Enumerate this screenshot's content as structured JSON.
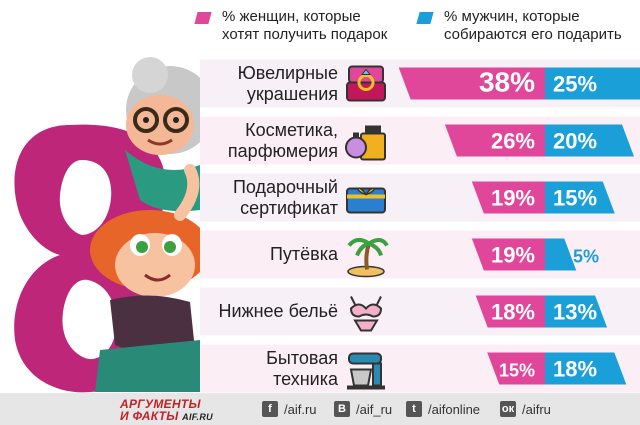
{
  "legend": {
    "women": "% женщин, которые хотят получить подарок",
    "women_line1": "% женщин, которые",
    "women_line2": "хотят получить подарок",
    "men_line1": "% мужчин, которые",
    "men_line2": "собираются его подарить",
    "women_color": "#e0479a",
    "men_color": "#1b9fd9"
  },
  "chart_data": {
    "type": "bar",
    "categories": [
      "Ювелирные украшения",
      "Косметика, парфюмерия",
      "Подарочный сертификат",
      "Путёвка",
      "Нижнее бельё",
      "Бытовая техника"
    ],
    "category_lines": [
      [
        "Ювелирные",
        "украшения"
      ],
      [
        "Косметика,",
        "парфюмерия"
      ],
      [
        "Подарочный",
        "сертификат"
      ],
      [
        "Путёвка"
      ],
      [
        "Нижнее бельё"
      ],
      [
        "Бытовая",
        "техника"
      ]
    ],
    "series": [
      {
        "name": "% женщин, которые хотят получить подарок",
        "values": [
          38,
          26,
          19,
          19,
          18,
          15
        ],
        "labels": [
          "38%",
          "26%",
          "19%",
          "19%",
          "18%",
          "15%"
        ],
        "color": "#e0479a"
      },
      {
        "name": "% мужчин, которые собираются его подарить",
        "values": [
          25,
          20,
          15,
          5,
          13,
          18
        ],
        "labels": [
          "25%",
          "20%",
          "15%",
          "5%",
          "13%",
          "18%"
        ],
        "color": "#1b9fd9"
      }
    ],
    "icons": [
      "ring-box-icon",
      "perfume-icon",
      "gift-card-icon",
      "palm-island-icon",
      "lingerie-icon",
      "mixer-icon"
    ]
  },
  "footer": {
    "logo_line1": "АРГУМЕНТЫ",
    "logo_line2": "И ФАКТЫ",
    "logo_domain": "AIF.RU",
    "social": [
      {
        "icon": "facebook-icon",
        "glyph": "f",
        "label": "/aif.ru"
      },
      {
        "icon": "vk-icon",
        "glyph": "B",
        "label": "/aif_ru"
      },
      {
        "icon": "twitter-icon",
        "glyph": "t",
        "label": "/aifonline"
      },
      {
        "icon": "odnoklassniki-icon",
        "glyph": "ок",
        "label": "/aifru"
      }
    ]
  }
}
